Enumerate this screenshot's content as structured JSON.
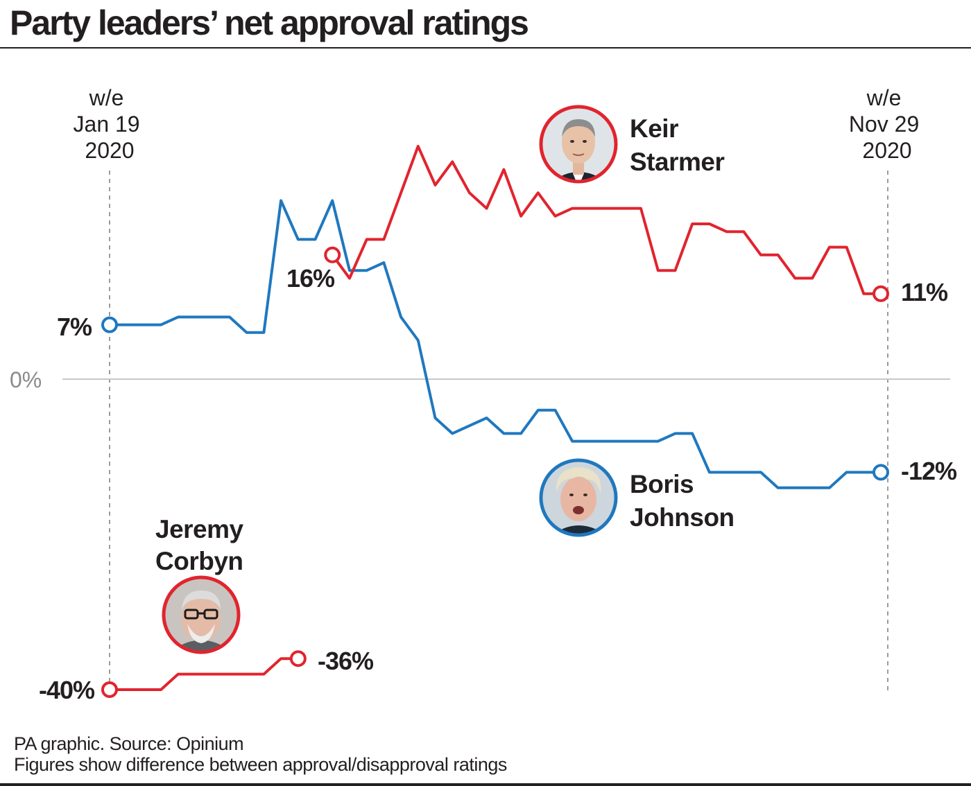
{
  "title": "Party leaders’ net approval ratings",
  "footer": {
    "source": "PA graphic. Source: Opinium",
    "note": "Figures show difference between approval/disapproval ratings"
  },
  "colors": {
    "johnson": "#1f78bf",
    "labour": "#e1242e",
    "zero_line": "#c7c7c7",
    "guide": "#9b9b9b",
    "text": "#231f20",
    "muted": "#8a8a8a"
  },
  "chart_data": {
    "type": "line",
    "x_unit": "week ending, 2020",
    "x_start_label": [
      "w/e",
      "Jan 19",
      "2020"
    ],
    "x_end_label": [
      "w/e",
      "Nov 29",
      "2020"
    ],
    "x_range": [
      0,
      45
    ],
    "ylim": [
      -42,
      25
    ],
    "zero_label": "0%",
    "grid": false,
    "series": [
      {
        "name": "Boris Johnson",
        "color": "#1f78bf",
        "photo_label": [
          "Boris",
          "Johnson"
        ],
        "start_label": "7%",
        "end_label": "-12%",
        "points": [
          [
            0,
            7
          ],
          [
            1,
            7
          ],
          [
            2,
            7
          ],
          [
            3,
            7
          ],
          [
            4,
            8
          ],
          [
            5,
            8
          ],
          [
            6,
            8
          ],
          [
            7,
            8
          ],
          [
            8,
            6
          ],
          [
            9,
            6
          ],
          [
            10,
            23
          ],
          [
            11,
            18
          ],
          [
            12,
            18
          ],
          [
            13,
            23
          ],
          [
            14,
            14
          ],
          [
            15,
            14
          ],
          [
            16,
            15
          ],
          [
            17,
            8
          ],
          [
            18,
            5
          ],
          [
            19,
            -5
          ],
          [
            20,
            -7
          ],
          [
            21,
            -6
          ],
          [
            22,
            -5
          ],
          [
            23,
            -7
          ],
          [
            24,
            -7
          ],
          [
            25,
            -4
          ],
          [
            26,
            -4
          ],
          [
            27,
            -8
          ],
          [
            28,
            -8
          ],
          [
            29,
            -8
          ],
          [
            30,
            -8
          ],
          [
            31,
            -8
          ],
          [
            32,
            -8
          ],
          [
            33,
            -7
          ],
          [
            34,
            -7
          ],
          [
            35,
            -12
          ],
          [
            36,
            -12
          ],
          [
            37,
            -12
          ],
          [
            38,
            -12
          ],
          [
            39,
            -14
          ],
          [
            40,
            -14
          ],
          [
            41,
            -14
          ],
          [
            42,
            -14
          ],
          [
            43,
            -12
          ],
          [
            44,
            -12
          ],
          [
            45,
            -12
          ]
        ]
      },
      {
        "name": "Keir Starmer",
        "color": "#e1242e",
        "photo_label": [
          "Keir",
          "Starmer"
        ],
        "start_label": "16%",
        "end_label": "11%",
        "points": [
          [
            13,
            16
          ],
          [
            14,
            13
          ],
          [
            15,
            18
          ],
          [
            16,
            18
          ],
          [
            17,
            24
          ],
          [
            18,
            30
          ],
          [
            19,
            25
          ],
          [
            20,
            28
          ],
          [
            21,
            24
          ],
          [
            22,
            22
          ],
          [
            23,
            27
          ],
          [
            24,
            21
          ],
          [
            25,
            24
          ],
          [
            26,
            21
          ],
          [
            27,
            22
          ],
          [
            28,
            22
          ],
          [
            29,
            22
          ],
          [
            30,
            22
          ],
          [
            31,
            22
          ],
          [
            32,
            14
          ],
          [
            33,
            14
          ],
          [
            34,
            20
          ],
          [
            35,
            20
          ],
          [
            36,
            19
          ],
          [
            37,
            19
          ],
          [
            38,
            16
          ],
          [
            39,
            16
          ],
          [
            40,
            13
          ],
          [
            41,
            13
          ],
          [
            42,
            17
          ],
          [
            43,
            17
          ],
          [
            44,
            11
          ],
          [
            45,
            11
          ]
        ]
      },
      {
        "name": "Jeremy Corbyn",
        "color": "#e1242e",
        "photo_label": [
          "Jeremy",
          "Corbyn"
        ],
        "start_label": "-40%",
        "end_label": "-36%",
        "points": [
          [
            0,
            -40
          ],
          [
            1,
            -40
          ],
          [
            2,
            -40
          ],
          [
            3,
            -40
          ],
          [
            4,
            -38
          ],
          [
            5,
            -38
          ],
          [
            6,
            -38
          ],
          [
            7,
            -38
          ],
          [
            8,
            -38
          ],
          [
            9,
            -38
          ],
          [
            10,
            -36
          ],
          [
            11,
            -36
          ]
        ]
      }
    ]
  }
}
